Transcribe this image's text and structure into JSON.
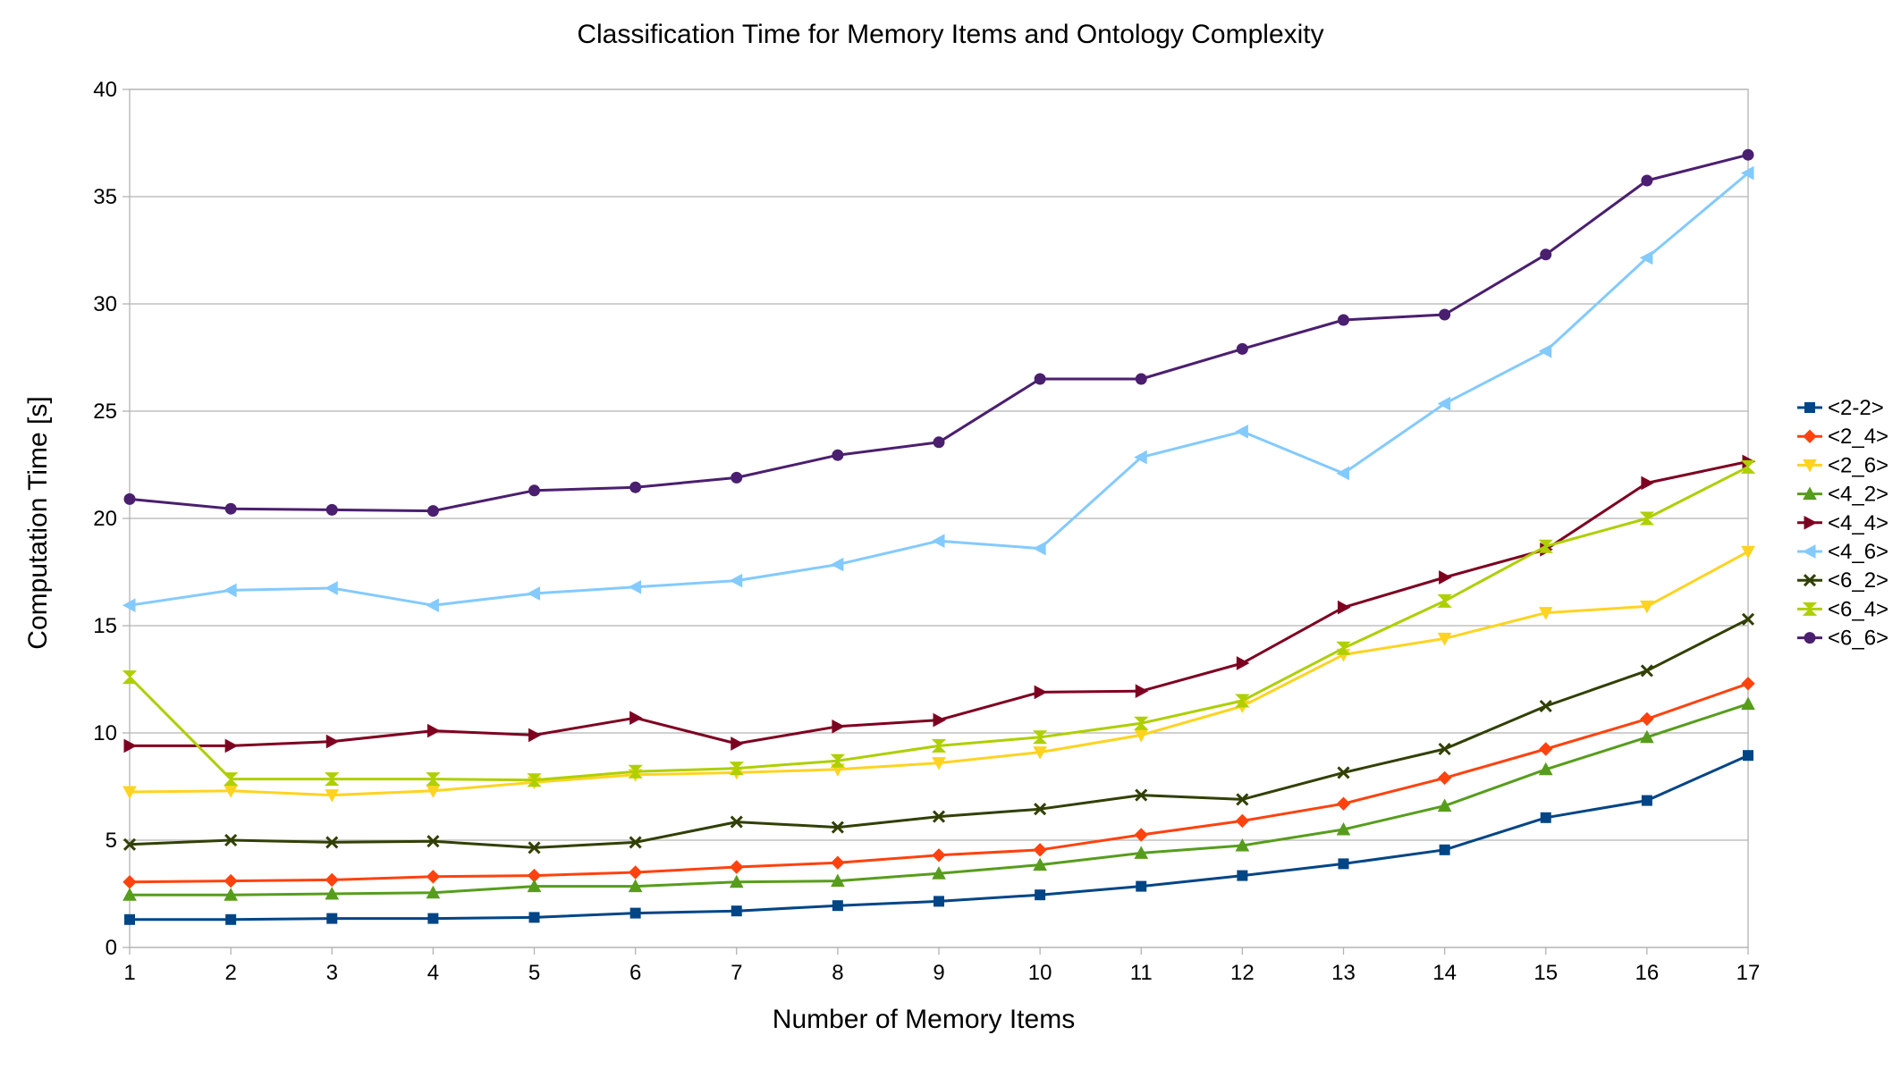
{
  "chart_data": {
    "type": "line",
    "title": "Classification Time for Memory Items and Ontology Complexity",
    "xlabel": "Number of Memory Items",
    "ylabel": "Computation Time [s]",
    "x": [
      1,
      2,
      3,
      4,
      5,
      6,
      7,
      8,
      9,
      10,
      11,
      12,
      13,
      14,
      15,
      16,
      17
    ],
    "xlim": [
      1,
      17
    ],
    "ylim": [
      0,
      40
    ],
    "y_ticks": [
      0,
      5,
      10,
      15,
      20,
      25,
      30,
      35,
      40
    ],
    "grid": "horizontal",
    "legend_position": "right",
    "series": [
      {
        "name": "<2-2>",
        "color": "#004586",
        "marker": "square",
        "values": [
          1.3,
          1.3,
          1.35,
          1.35,
          1.4,
          1.6,
          1.7,
          1.95,
          2.15,
          2.45,
          2.85,
          3.35,
          3.9,
          4.55,
          6.05,
          6.85,
          8.95
        ]
      },
      {
        "name": "<2_4>",
        "color": "#ff420e",
        "marker": "diamond",
        "values": [
          3.05,
          3.1,
          3.15,
          3.3,
          3.35,
          3.5,
          3.75,
          3.95,
          4.3,
          4.55,
          5.25,
          5.9,
          6.7,
          7.9,
          9.25,
          10.65,
          12.3
        ]
      },
      {
        "name": "<2_6>",
        "color": "#ffd320",
        "marker": "triangle-down",
        "values": [
          7.25,
          7.3,
          7.1,
          7.3,
          7.7,
          8.05,
          8.15,
          8.3,
          8.6,
          9.1,
          9.9,
          11.25,
          13.65,
          14.4,
          15.6,
          15.9,
          18.45
        ]
      },
      {
        "name": "<4_2>",
        "color": "#579d1c",
        "marker": "triangle-up",
        "values": [
          2.45,
          2.45,
          2.5,
          2.55,
          2.85,
          2.85,
          3.05,
          3.1,
          3.45,
          3.85,
          4.4,
          4.75,
          5.5,
          6.6,
          8.3,
          9.8,
          11.35
        ]
      },
      {
        "name": "<4_4>",
        "color": "#7e0021",
        "marker": "triangle-right",
        "values": [
          9.4,
          9.4,
          9.6,
          10.1,
          9.9,
          10.7,
          9.5,
          10.3,
          10.6,
          11.9,
          11.95,
          13.25,
          15.85,
          17.25,
          18.55,
          21.65,
          22.65
        ]
      },
      {
        "name": "<4_6>",
        "color": "#83caff",
        "marker": "triangle-left",
        "values": [
          15.95,
          16.65,
          16.75,
          15.95,
          16.5,
          16.8,
          17.1,
          17.85,
          18.95,
          18.6,
          22.85,
          24.05,
          22.1,
          25.35,
          27.8,
          32.15,
          36.1
        ]
      },
      {
        "name": "<6_2>",
        "color": "#314004",
        "marker": "x",
        "values": [
          4.8,
          5.0,
          4.9,
          4.95,
          4.65,
          4.9,
          5.85,
          5.6,
          6.1,
          6.45,
          7.1,
          6.9,
          8.15,
          9.25,
          11.25,
          12.9,
          15.3
        ]
      },
      {
        "name": "<6_4>",
        "color": "#aecf00",
        "marker": "hourglass",
        "values": [
          12.6,
          7.85,
          7.85,
          7.85,
          7.8,
          8.2,
          8.35,
          8.7,
          9.4,
          9.8,
          10.45,
          11.5,
          13.95,
          16.15,
          18.7,
          20.0,
          22.4
        ]
      },
      {
        "name": "<6_6>",
        "color": "#4b1f6f",
        "marker": "circle",
        "values": [
          20.9,
          20.45,
          20.4,
          20.35,
          21.3,
          21.45,
          21.9,
          22.95,
          23.55,
          26.5,
          26.5,
          27.9,
          29.25,
          29.5,
          32.3,
          35.75,
          36.95
        ]
      }
    ]
  }
}
